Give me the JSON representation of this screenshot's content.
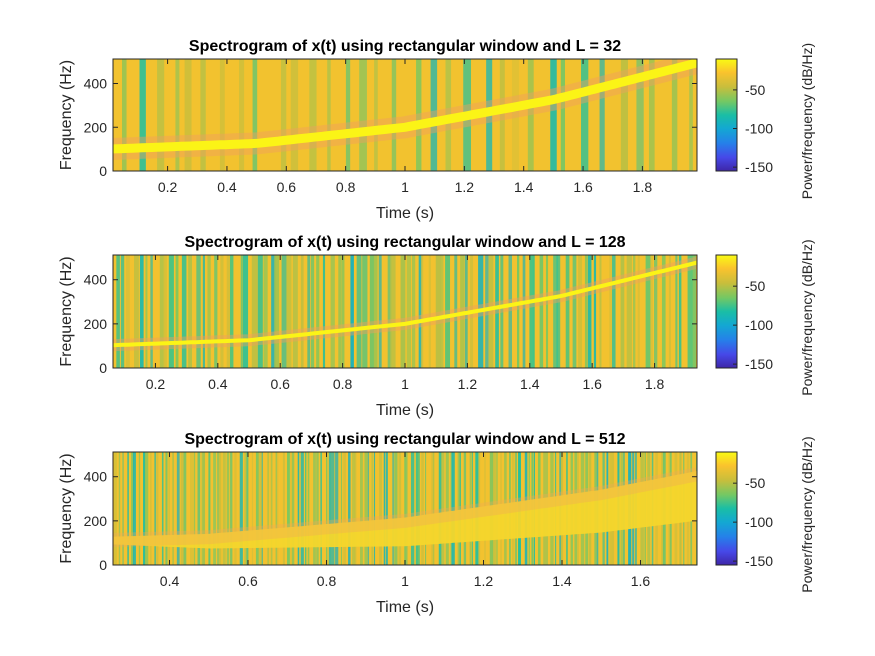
{
  "chart_data": [
    {
      "type": "heatmap",
      "title": "Spectrogram of x(t) using rectangular window and L = 32",
      "xlabel": "Time (s)",
      "ylabel": "Frequency (Hz)",
      "xlim": [
        0.016,
        1.984
      ],
      "ylim": [
        0,
        512
      ],
      "xticks": [
        "0.2",
        "0.4",
        "0.6",
        "0.8",
        "1",
        "1.2",
        "1.4",
        "1.6",
        "1.8"
      ],
      "xtick_values": [
        0.2,
        0.4,
        0.6,
        0.8,
        1.0,
        1.2,
        1.4,
        1.6,
        1.8
      ],
      "yticks": [
        "0",
        "200",
        "400"
      ],
      "ytick_values": [
        0,
        200,
        400
      ],
      "ridge_frequency": {
        "t": [
          0.0,
          0.5,
          1.0,
          1.5,
          2.0
        ],
        "f": [
          100,
          126,
          200,
          326,
          500
        ]
      },
      "window_length": 32,
      "colorbar": {
        "label": "Power/frequency (dB/Hz)",
        "ticks": [
          "-50",
          "-100",
          "-150"
        ],
        "tick_values": [
          -50,
          -100,
          -150
        ],
        "clim": [
          -155,
          -10
        ]
      },
      "colormap": "parula"
    },
    {
      "type": "heatmap",
      "title": "Spectrogram of x(t) using rectangular window and L = 128",
      "xlabel": "Time (s)",
      "ylabel": "Frequency (Hz)",
      "xlim": [
        0.064,
        1.936
      ],
      "ylim": [
        0,
        512
      ],
      "xticks": [
        "0.2",
        "0.4",
        "0.6",
        "0.8",
        "1",
        "1.2",
        "1.4",
        "1.6",
        "1.8"
      ],
      "xtick_values": [
        0.2,
        0.4,
        0.6,
        0.8,
        1.0,
        1.2,
        1.4,
        1.6,
        1.8
      ],
      "yticks": [
        "0",
        "200",
        "400"
      ],
      "ytick_values": [
        0,
        200,
        400
      ],
      "ridge_frequency": {
        "t": [
          0.0,
          0.5,
          1.0,
          1.5,
          2.0
        ],
        "f": [
          100,
          126,
          200,
          326,
          500
        ]
      },
      "window_length": 128,
      "colorbar": {
        "label": "Power/frequency (dB/Hz)",
        "ticks": [
          "-50",
          "-100",
          "-150"
        ],
        "tick_values": [
          -50,
          -100,
          -150
        ],
        "clim": [
          -155,
          -10
        ]
      },
      "colormap": "parula"
    },
    {
      "type": "heatmap",
      "title": "Spectrogram of x(t) using rectangular window and L = 512",
      "xlabel": "Time (s)",
      "ylabel": "Frequency (Hz)",
      "xlim": [
        0.256,
        1.744
      ],
      "ylim": [
        0,
        512
      ],
      "xticks": [
        "0.4",
        "0.6",
        "0.8",
        "1",
        "1.2",
        "1.4",
        "1.6"
      ],
      "xtick_values": [
        0.4,
        0.6,
        0.8,
        1.0,
        1.2,
        1.4,
        1.6
      ],
      "yticks": [
        "0",
        "200",
        "400"
      ],
      "ytick_values": [
        0,
        200,
        400
      ],
      "ridge_frequency": {
        "t": [
          0.0,
          0.5,
          1.0,
          1.5,
          2.0
        ],
        "f": [
          100,
          126,
          200,
          326,
          500
        ]
      },
      "window_length": 512,
      "colorbar": {
        "label": "Power/frequency (dB/Hz)",
        "ticks": [
          "-50",
          "-100",
          "-150"
        ],
        "tick_values": [
          -50,
          -100,
          -150
        ],
        "clim": [
          -155,
          -10
        ]
      },
      "colormap": "parula"
    }
  ]
}
